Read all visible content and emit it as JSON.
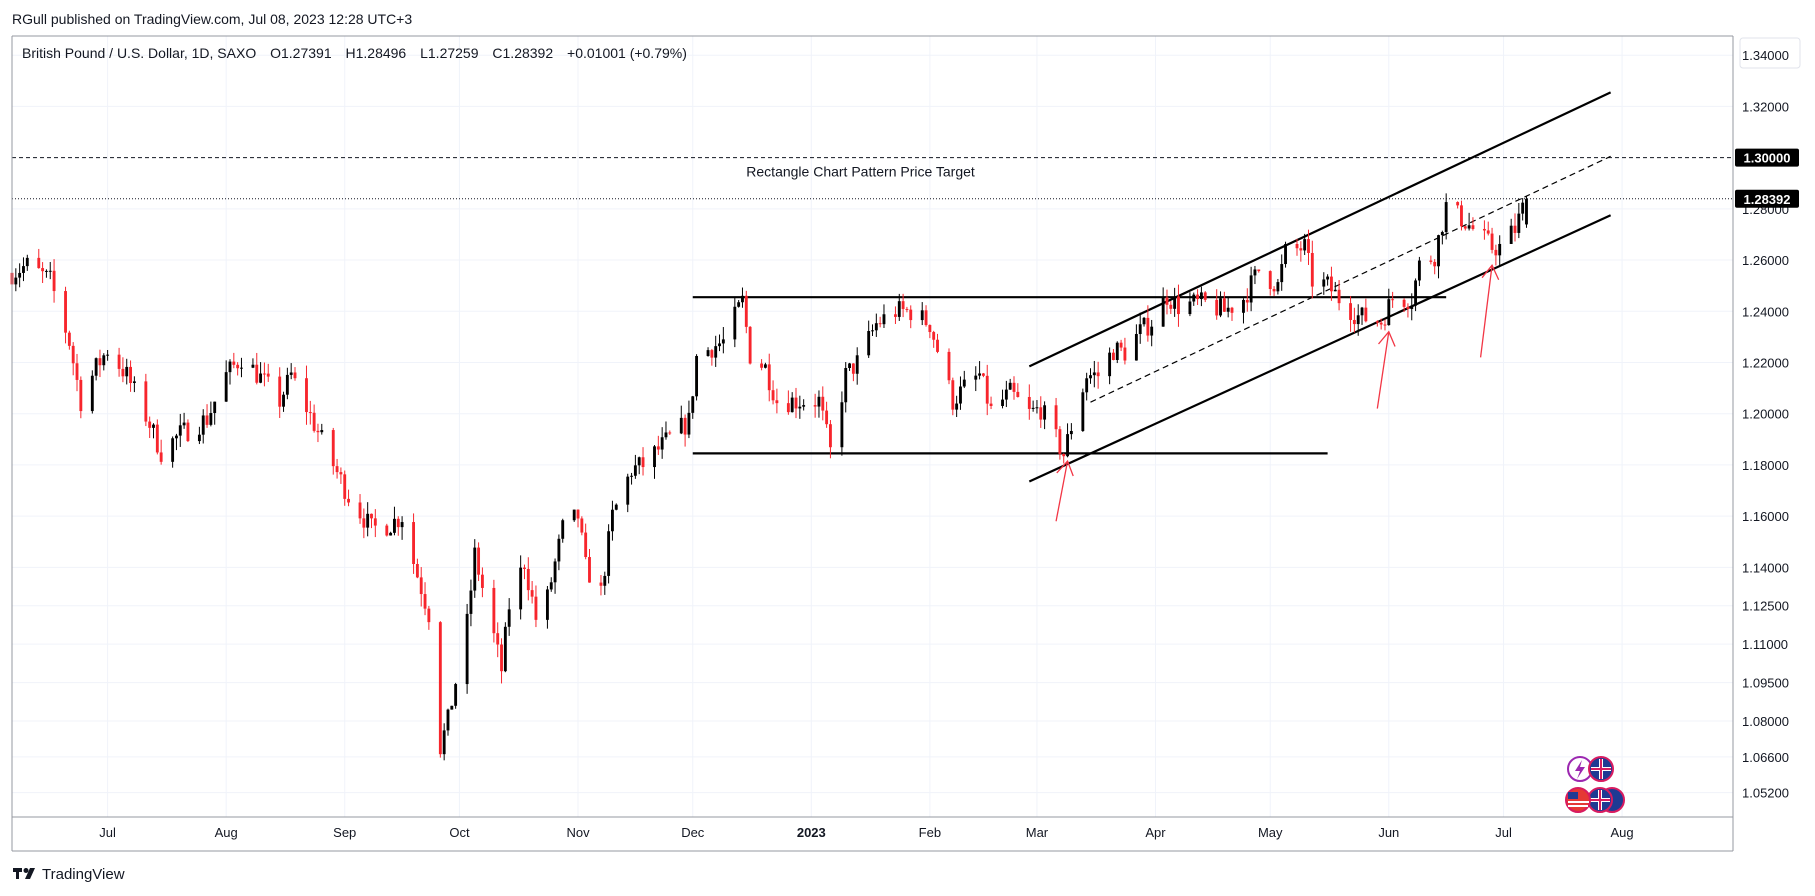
{
  "header": {
    "published_line": "RGull published on TradingView.com, Jul 08, 2023 12:28 UTC+3"
  },
  "legend": {
    "instrument": "British Pound / U.S. Dollar, 1D, SAXO",
    "open": "O1.27391",
    "high": "H1.28496",
    "low": "L1.27259",
    "close": "C1.28392",
    "change": "+0.01001 (+0.79%)"
  },
  "footer": {
    "brand": "TradingView"
  },
  "colors": {
    "up": "#000000",
    "down": "#f7252c",
    "grid": "#f0f3fa",
    "axis_border": "#9598a1",
    "arrow": "#f23645",
    "price_label_bg": "#000000",
    "price_label_text": "#ffffff"
  },
  "icons": {
    "events_top": [
      "lightning-icon",
      "uk-flag-icon"
    ],
    "events_bottom": [
      "us-flag-icon",
      "uk-flag-icon",
      "uk-flag-icon"
    ]
  },
  "chart_data": {
    "type": "candlestick",
    "title": "British Pound / U.S. Dollar, 1D, SAXO",
    "x_tick_labels": [
      "Jul",
      "Aug",
      "Sep",
      "Oct",
      "Nov",
      "Dec",
      "2023",
      "Feb",
      "Mar",
      "Apr",
      "May",
      "Jun",
      "Jul",
      "Aug"
    ],
    "x_tick_dates": [
      "2022-07-01",
      "2022-08-01",
      "2022-09-01",
      "2022-10-01",
      "2022-11-01",
      "2022-12-01",
      "2023-01-01",
      "2023-02-01",
      "2023-03-01",
      "2023-04-01",
      "2023-05-01",
      "2023-06-01",
      "2023-07-01",
      "2023-08-01"
    ],
    "x_range": [
      "2022-06-06",
      "2023-08-30"
    ],
    "y_range": [
      1.0425,
      1.3475
    ],
    "y_tick_values": [
      1.052,
      1.066,
      1.08,
      1.095,
      1.11,
      1.125,
      1.14,
      1.16,
      1.18,
      1.2,
      1.22,
      1.24,
      1.26,
      1.28,
      1.32,
      1.34
    ],
    "y_tick_labels": [
      "1.05200",
      "1.06600",
      "1.08000",
      "1.09500",
      "1.11000",
      "1.12500",
      "1.14000",
      "1.16000",
      "1.18000",
      "1.20000",
      "1.22000",
      "1.24000",
      "1.26000",
      "1.28000",
      "1.32000",
      "1.34000"
    ],
    "price_labels": [
      {
        "value": 1.3,
        "text": "1.30000"
      },
      {
        "value": 1.28392,
        "text": "1.28392"
      }
    ],
    "horizontal_lines": [
      {
        "value": 1.3,
        "style": "dashed",
        "label": "Rectangle Chart Pattern Price Target",
        "label_date": "2022-12-15"
      },
      {
        "value": 1.28392,
        "style": "dotted"
      }
    ],
    "trend_lines": [
      {
        "from": [
          "2022-12-01",
          1.2455
        ],
        "to": [
          "2023-06-16",
          1.2455
        ],
        "style": "solid"
      },
      {
        "from": [
          "2022-12-01",
          1.1845
        ],
        "to": [
          "2023-05-16",
          1.1845
        ],
        "style": "solid"
      },
      {
        "from": [
          "2023-02-27",
          1.2185
        ],
        "to": [
          "2023-07-29",
          1.3255
        ],
        "style": "solid"
      },
      {
        "from": [
          "2023-02-27",
          1.1735
        ],
        "to": [
          "2023-07-29",
          1.2775
        ],
        "style": "solid"
      },
      {
        "from": [
          "2023-03-15",
          1.2045
        ],
        "to": [
          "2023-07-29",
          1.3005
        ],
        "style": "dashed"
      }
    ],
    "arrows": [
      {
        "from": [
          "2023-03-06",
          1.158
        ],
        "to": [
          "2023-03-09",
          1.1815
        ]
      },
      {
        "from": [
          "2023-05-29",
          1.202
        ],
        "to": [
          "2023-06-01",
          1.232
        ]
      },
      {
        "from": [
          "2023-06-25",
          1.222
        ],
        "to": [
          "2023-06-28",
          1.258
        ]
      }
    ],
    "anchors": [
      [
        "2022-06-06",
        1.255
      ],
      [
        "2022-06-10",
        1.258
      ],
      [
        "2022-06-16",
        1.252
      ],
      [
        "2022-06-21",
        1.228
      ],
      [
        "2022-06-24",
        1.205
      ],
      [
        "2022-06-28",
        1.218
      ],
      [
        "2022-07-01",
        1.225
      ],
      [
        "2022-07-06",
        1.215
      ],
      [
        "2022-07-12",
        1.196
      ],
      [
        "2022-07-15",
        1.185
      ],
      [
        "2022-07-20",
        1.192
      ],
      [
        "2022-07-27",
        1.198
      ],
      [
        "2022-08-01",
        1.215
      ],
      [
        "2022-08-05",
        1.222
      ],
      [
        "2022-08-10",
        1.214
      ],
      [
        "2022-08-15",
        1.205
      ],
      [
        "2022-08-18",
        1.215
      ],
      [
        "2022-08-24",
        1.196
      ],
      [
        "2022-08-29",
        1.18
      ],
      [
        "2022-09-02",
        1.168
      ],
      [
        "2022-09-08",
        1.155
      ],
      [
        "2022-09-13",
        1.157
      ],
      [
        "2022-09-16",
        1.16
      ],
      [
        "2022-09-19",
        1.142
      ],
      [
        "2022-09-23",
        1.122
      ],
      [
        "2022-09-26",
        1.07
      ],
      [
        "2022-09-28",
        1.08
      ],
      [
        "2022-10-03",
        1.118
      ],
      [
        "2022-10-05",
        1.145
      ],
      [
        "2022-10-07",
        1.132
      ],
      [
        "2022-10-12",
        1.1
      ],
      [
        "2022-10-14",
        1.125
      ],
      [
        "2022-10-18",
        1.142
      ],
      [
        "2022-10-21",
        1.12
      ],
      [
        "2022-10-24",
        1.128
      ],
      [
        "2022-10-28",
        1.155
      ],
      [
        "2022-11-01",
        1.16
      ],
      [
        "2022-11-03",
        1.14
      ],
      [
        "2022-11-07",
        1.13
      ],
      [
        "2022-11-10",
        1.16
      ],
      [
        "2022-11-15",
        1.178
      ],
      [
        "2022-11-18",
        1.18
      ],
      [
        "2022-11-24",
        1.189
      ],
      [
        "2022-11-30",
        1.197
      ],
      [
        "2022-12-02",
        1.222
      ],
      [
        "2022-12-06",
        1.226
      ],
      [
        "2022-12-09",
        1.228
      ],
      [
        "2022-12-14",
        1.244
      ],
      [
        "2022-12-16",
        1.223
      ],
      [
        "2022-12-20",
        1.218
      ],
      [
        "2022-12-23",
        1.205
      ],
      [
        "2022-12-28",
        1.205
      ],
      [
        "2023-01-03",
        1.205
      ],
      [
        "2023-01-06",
        1.185
      ],
      [
        "2023-01-10",
        1.215
      ],
      [
        "2023-01-13",
        1.22
      ],
      [
        "2023-01-18",
        1.235
      ],
      [
        "2023-01-23",
        1.24
      ],
      [
        "2023-01-27",
        1.24
      ],
      [
        "2023-02-01",
        1.235
      ],
      [
        "2023-02-03",
        1.225
      ],
      [
        "2023-02-07",
        1.205
      ],
      [
        "2023-02-10",
        1.21
      ],
      [
        "2023-02-14",
        1.215
      ],
      [
        "2023-02-17",
        1.201
      ],
      [
        "2023-02-22",
        1.208
      ],
      [
        "2023-02-27",
        1.2
      ],
      [
        "2023-03-02",
        1.202
      ],
      [
        "2023-03-08",
        1.184
      ],
      [
        "2023-03-10",
        1.195
      ],
      [
        "2023-03-14",
        1.215
      ],
      [
        "2023-03-17",
        1.215
      ],
      [
        "2023-03-21",
        1.225
      ],
      [
        "2023-03-24",
        1.224
      ],
      [
        "2023-03-28",
        1.232
      ],
      [
        "2023-03-31",
        1.236
      ],
      [
        "2023-04-04",
        1.246
      ],
      [
        "2023-04-07",
        1.242
      ],
      [
        "2023-04-11",
        1.243
      ],
      [
        "2023-04-14",
        1.243
      ],
      [
        "2023-04-19",
        1.24
      ],
      [
        "2023-04-24",
        1.245
      ],
      [
        "2023-04-28",
        1.256
      ],
      [
        "2023-05-03",
        1.25
      ],
      [
        "2023-05-05",
        1.263
      ],
      [
        "2023-05-10",
        1.265
      ],
      [
        "2023-05-12",
        1.252
      ],
      [
        "2023-05-16",
        1.25
      ],
      [
        "2023-05-19",
        1.245
      ],
      [
        "2023-05-24",
        1.238
      ],
      [
        "2023-05-30",
        1.236
      ],
      [
        "2023-06-02",
        1.245
      ],
      [
        "2023-06-07",
        1.245
      ],
      [
        "2023-06-09",
        1.258
      ],
      [
        "2023-06-13",
        1.262
      ],
      [
        "2023-06-16",
        1.281
      ],
      [
        "2023-06-21",
        1.275
      ],
      [
        "2023-06-23",
        1.272
      ],
      [
        "2023-06-28",
        1.265
      ],
      [
        "2023-06-30",
        1.265
      ],
      [
        "2023-07-04",
        1.272
      ],
      [
        "2023-07-07",
        1.284
      ]
    ],
    "last_candle": {
      "date": "2023-07-07",
      "open": 1.27391,
      "high": 1.28496,
      "low": 1.27259,
      "close": 1.28392
    }
  }
}
